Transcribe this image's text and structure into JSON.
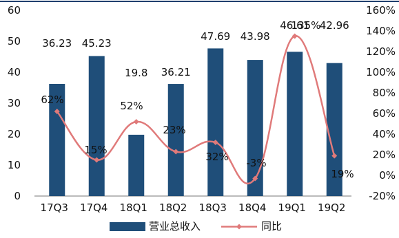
{
  "chart_data": {
    "type": "bar",
    "categories": [
      "17Q3",
      "17Q4",
      "18Q1",
      "18Q2",
      "18Q3",
      "18Q4",
      "19Q1",
      "19Q2"
    ],
    "series": [
      {
        "name": "营业总收入",
        "type": "bar",
        "axis": "left",
        "values": [
          36.23,
          45.23,
          19.8,
          36.21,
          47.69,
          43.98,
          46.61,
          42.96
        ],
        "labels": [
          "36.23",
          "45.23",
          "19.8",
          "36.21",
          "47.69",
          "43.98",
          "46.61",
          "42.96"
        ],
        "color": "#1f4e79"
      },
      {
        "name": "同比",
        "type": "line",
        "axis": "right",
        "smooth": true,
        "marker": "diamond",
        "values": [
          62,
          15,
          52,
          23,
          32,
          -3,
          135,
          19
        ],
        "labels": [
          "62%",
          "15%",
          "52%",
          "23%",
          "32%",
          "-3%",
          "135%",
          "19%"
        ],
        "color": "#e07a7a"
      }
    ],
    "left_axis": {
      "ylim": [
        0,
        60
      ],
      "ticks": [
        "0",
        "10",
        "20",
        "30",
        "40",
        "50",
        "60"
      ]
    },
    "right_axis": {
      "ylim": [
        -20,
        160
      ],
      "ticks": [
        "-20%",
        "0%",
        "20%",
        "40%",
        "60%",
        "80%",
        "100%",
        "120%",
        "140%",
        "160%"
      ]
    },
    "grid": false,
    "legend_position": "bottom-center"
  }
}
